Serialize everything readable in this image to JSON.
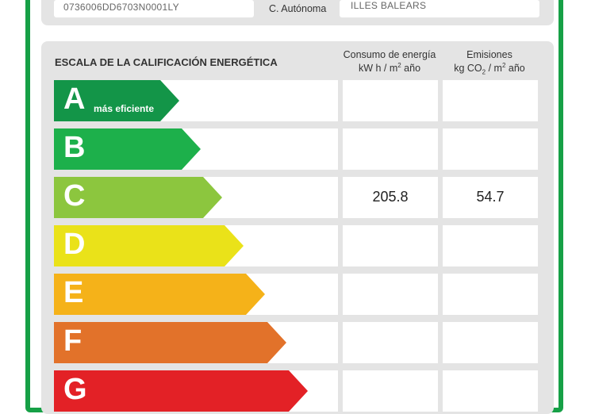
{
  "header": {
    "reference_value": "0736006DD6703N0001LY",
    "region_label": "C. Autónoma",
    "region_value": "ILLES BALEARS"
  },
  "scale": {
    "title": "ESCALA DE LA CALIFICACIÓN ENERGÉTICA",
    "energy_header_line1": "Consumo de energía",
    "energy_header_line2_a": "kW h  / m",
    "energy_header_line2_sup": "2",
    "energy_header_line2_b": " año",
    "emissions_header_line1": "Emisiones",
    "emissions_header_line2_a": "kg CO",
    "emissions_header_line2_sub": "2",
    "emissions_header_line2_b": "  / m",
    "emissions_header_line2_sup": "2",
    "emissions_header_line2_c": " año"
  },
  "ratings": [
    {
      "letter": "A",
      "note": "más eficiente",
      "color": "#139548",
      "energy": "",
      "emissions": ""
    },
    {
      "letter": "B",
      "note": "",
      "color": "#1db04b",
      "energy": "",
      "emissions": ""
    },
    {
      "letter": "C",
      "note": "",
      "color": "#8cc63e",
      "energy": "205.8",
      "emissions": "54.7"
    },
    {
      "letter": "D",
      "note": "",
      "color": "#eae219",
      "energy": "",
      "emissions": ""
    },
    {
      "letter": "E",
      "note": "",
      "color": "#f5b219",
      "energy": "",
      "emissions": ""
    },
    {
      "letter": "F",
      "note": "",
      "color": "#e2722a",
      "energy": "",
      "emissions": ""
    },
    {
      "letter": "G",
      "note": "",
      "color": "#e32126",
      "energy": "",
      "emissions": ""
    }
  ]
}
